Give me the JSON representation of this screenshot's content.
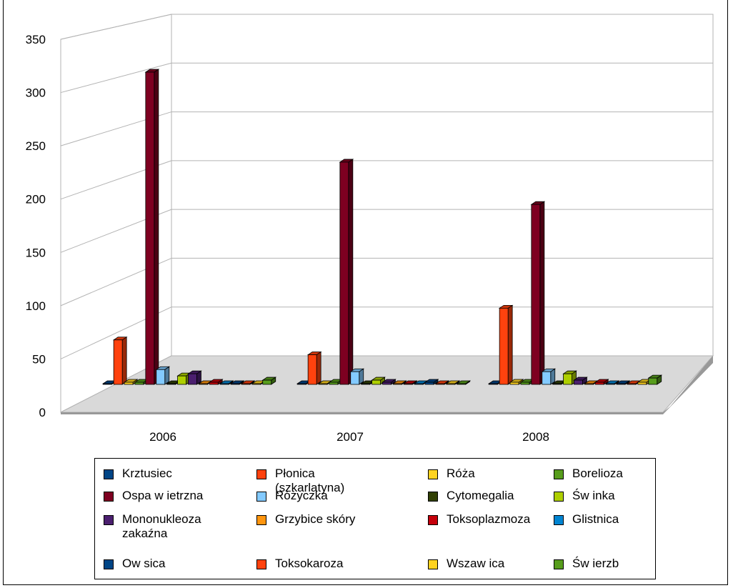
{
  "chart_data": {
    "type": "bar",
    "title": "",
    "xlabel": "",
    "ylabel": "",
    "ylim": [
      0,
      350
    ],
    "yticks": [
      "0",
      "50",
      "100",
      "150",
      "200",
      "250",
      "300",
      "350"
    ],
    "categories": [
      "2006",
      "2007",
      "2008"
    ],
    "grid": true,
    "legend_position": "bottom",
    "series": [
      {
        "name": "Krztusiec",
        "color": "#004586",
        "values": [
          0,
          0,
          0
        ]
      },
      {
        "name": "Płonica (szkarlatyna)",
        "color": "#ff420e",
        "values": [
          42,
          28,
          72
        ]
      },
      {
        "name": "Róża",
        "color": "#ffd320",
        "values": [
          2,
          0,
          2
        ]
      },
      {
        "name": "Borelioza",
        "color": "#579d1c",
        "values": [
          2,
          2,
          2
        ]
      },
      {
        "name": "Ospa w ietrzna",
        "color": "#7e0021",
        "values": [
          295,
          210,
          170
        ]
      },
      {
        "name": "Różyczka",
        "color": "#83caff",
        "values": [
          14,
          12,
          12
        ]
      },
      {
        "name": "Cytomegalia",
        "color": "#314004",
        "values": [
          0,
          0,
          0
        ]
      },
      {
        "name": "Św inka",
        "color": "#aecf00",
        "values": [
          8,
          4,
          10
        ]
      },
      {
        "name": "Mononukleoza zakaźna",
        "color": "#4b1f6f",
        "values": [
          10,
          2,
          4
        ]
      },
      {
        "name": "Grzybice skóry",
        "color": "#ff950e",
        "values": [
          0,
          0,
          0
        ]
      },
      {
        "name": "Toksoplazmoza",
        "color": "#c5000b",
        "values": [
          2,
          0,
          2
        ]
      },
      {
        "name": "Glistnica",
        "color": "#0084d1",
        "values": [
          0,
          0,
          0
        ]
      },
      {
        "name": "Ow sica",
        "color": "#004586",
        "values": [
          0,
          2,
          0
        ]
      },
      {
        "name": "Toksokaroza",
        "color": "#ff420e",
        "values": [
          0,
          0,
          0
        ]
      },
      {
        "name": "Wszaw ica",
        "color": "#ffd320",
        "values": [
          0,
          0,
          2
        ]
      },
      {
        "name": "Św ierzb",
        "color": "#579d1c",
        "values": [
          4,
          0,
          6
        ]
      }
    ]
  }
}
